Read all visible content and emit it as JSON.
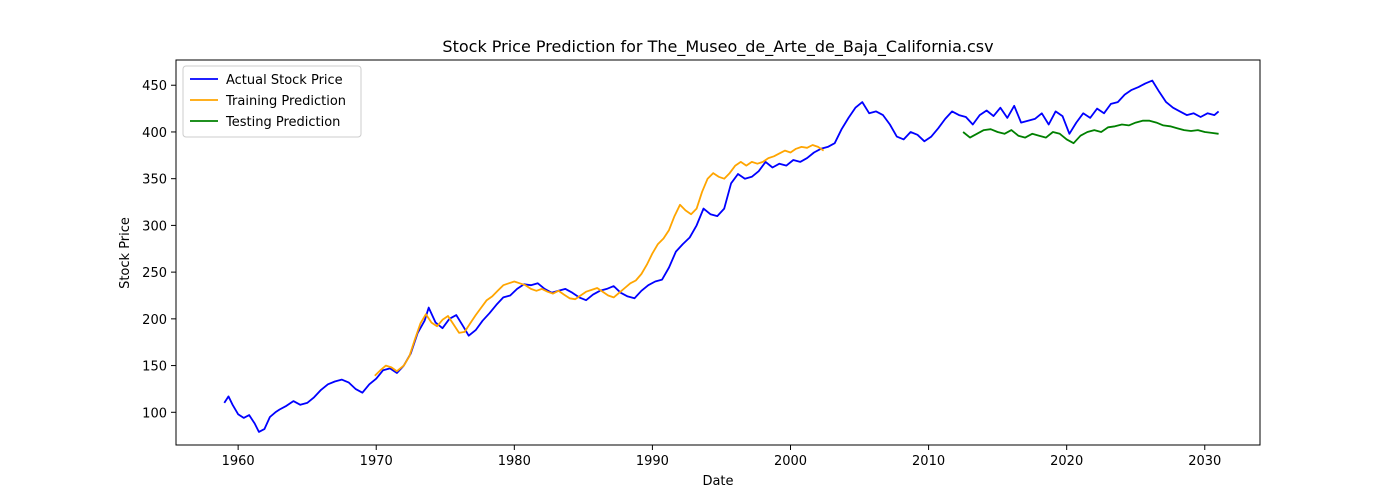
{
  "chart_data": {
    "type": "line",
    "title": "Stock Price Prediction for The_Museo_de_Arte_de_Baja_California.csv",
    "xlabel": "Date",
    "ylabel": "Stock Price",
    "xlim": [
      1955.5,
      2034.0
    ],
    "ylim": [
      65,
      477
    ],
    "xticks": [
      1960,
      1970,
      1980,
      1990,
      2000,
      2010,
      2020,
      2030
    ],
    "xtick_labels": [
      "1960",
      "1970",
      "1980",
      "1990",
      "2000",
      "2010",
      "2020",
      "2030"
    ],
    "yticks": [
      100,
      150,
      200,
      250,
      300,
      350,
      400,
      450
    ],
    "ytick_labels": [
      "100",
      "150",
      "200",
      "250",
      "300",
      "350",
      "400",
      "450"
    ],
    "grid": false,
    "legend_position": "upper-left",
    "series": [
      {
        "name": "Actual Stock Price",
        "color": "#0000ff",
        "x": [
          1959.0,
          1959.3,
          1959.6,
          1960.0,
          1960.4,
          1960.8,
          1961.2,
          1961.5,
          1961.9,
          1962.3,
          1962.7,
          1963.0,
          1963.5,
          1964.0,
          1964.5,
          1965.0,
          1965.5,
          1966.0,
          1966.5,
          1967.0,
          1967.5,
          1968.0,
          1968.5,
          1969.0,
          1969.5,
          1970.0,
          1970.5,
          1971.0,
          1971.5,
          1972.0,
          1972.5,
          1973.0,
          1973.5,
          1973.8,
          1974.3,
          1974.8,
          1975.3,
          1975.8,
          1976.3,
          1976.7,
          1977.2,
          1977.7,
          1978.2,
          1978.7,
          1979.2,
          1979.7,
          1980.2,
          1980.7,
          1981.2,
          1981.7,
          1982.2,
          1982.7,
          1983.2,
          1983.7,
          1984.2,
          1984.7,
          1985.2,
          1985.7,
          1986.2,
          1986.7,
          1987.2,
          1987.7,
          1988.2,
          1988.7,
          1989.2,
          1989.7,
          1990.2,
          1990.7,
          1991.2,
          1991.7,
          1992.2,
          1992.7,
          1993.2,
          1993.7,
          1994.2,
          1994.7,
          1995.2,
          1995.7,
          1996.2,
          1996.7,
          1997.2,
          1997.7,
          1998.2,
          1998.7,
          1999.2,
          1999.7,
          2000.2,
          2000.7,
          2001.2,
          2001.7,
          2002.2,
          2002.7,
          2003.2,
          2003.7,
          2004.2,
          2004.7,
          2005.2,
          2005.7,
          2006.2,
          2006.7,
          2007.2,
          2007.7,
          2008.2,
          2008.7,
          2009.2,
          2009.7,
          2010.2,
          2010.7,
          2011.2,
          2011.7,
          2012.2,
          2012.7,
          2013.2,
          2013.7,
          2014.2,
          2014.7,
          2015.2,
          2015.7,
          2016.2,
          2016.7,
          2017.2,
          2017.7,
          2018.2,
          2018.7,
          2019.2,
          2019.7,
          2020.2,
          2020.7,
          2021.2,
          2021.7,
          2022.2,
          2022.7,
          2023.2,
          2023.7,
          2024.2,
          2024.7,
          2025.2,
          2025.7,
          2026.2,
          2026.7,
          2027.2,
          2027.7,
          2028.2,
          2028.7,
          2029.2,
          2029.7,
          2030.2,
          2030.7,
          2031.0
        ],
        "y": [
          110,
          117,
          108,
          98,
          94,
          97,
          88,
          79,
          82,
          95,
          100,
          103,
          107,
          112,
          108,
          110,
          116,
          124,
          130,
          133,
          135,
          132,
          125,
          121,
          130,
          136,
          145,
          147,
          142,
          150,
          163,
          185,
          198,
          212,
          196,
          190,
          200,
          204,
          192,
          182,
          188,
          198,
          206,
          215,
          223,
          225,
          232,
          237,
          236,
          238,
          232,
          228,
          230,
          232,
          228,
          223,
          220,
          226,
          230,
          232,
          235,
          228,
          224,
          222,
          230,
          236,
          240,
          242,
          255,
          272,
          280,
          287,
          300,
          318,
          312,
          310,
          318,
          345,
          355,
          350,
          352,
          358,
          368,
          362,
          366,
          364,
          370,
          368,
          372,
          378,
          382,
          384,
          388,
          403,
          415,
          426,
          432,
          420,
          422,
          418,
          408,
          395,
          392,
          400,
          397,
          390,
          395,
          404,
          414,
          422,
          418,
          416,
          408,
          418,
          423,
          417,
          426,
          415,
          428,
          410,
          412,
          414,
          420,
          408,
          422,
          417,
          398,
          410,
          420,
          415,
          425,
          420,
          430,
          432,
          440,
          445,
          448,
          452,
          455,
          443,
          432,
          426,
          422,
          418,
          420,
          416,
          420,
          418,
          422
        ]
      },
      {
        "name": "Training Prediction",
        "color": "#ffa500",
        "x": [
          1969.9,
          1970.3,
          1970.7,
          1971.1,
          1971.5,
          1972.0,
          1972.4,
          1972.8,
          1973.2,
          1973.6,
          1974.0,
          1974.4,
          1974.8,
          1975.2,
          1975.6,
          1976.0,
          1976.4,
          1976.8,
          1977.2,
          1977.6,
          1978.0,
          1978.4,
          1978.8,
          1979.2,
          1979.6,
          1980.0,
          1980.4,
          1980.8,
          1981.2,
          1981.6,
          1982.0,
          1982.4,
          1982.8,
          1983.2,
          1983.6,
          1984.0,
          1984.4,
          1984.8,
          1985.2,
          1985.6,
          1986.0,
          1986.4,
          1986.8,
          1987.2,
          1987.6,
          1988.0,
          1988.4,
          1988.8,
          1989.2,
          1989.6,
          1990.0,
          1990.4,
          1990.8,
          1991.2,
          1991.6,
          1992.0,
          1992.4,
          1992.8,
          1993.2,
          1993.6,
          1994.0,
          1994.4,
          1994.8,
          1995.2,
          1995.6,
          1996.0,
          1996.4,
          1996.8,
          1997.2,
          1997.6,
          1998.0,
          1998.4,
          1998.8,
          1999.2,
          1999.6,
          2000.0,
          2000.4,
          2000.8,
          2001.2,
          2001.6,
          2002.0,
          2002.4
        ],
        "y": [
          139,
          145,
          150,
          148,
          144,
          150,
          160,
          178,
          195,
          205,
          196,
          192,
          199,
          203,
          194,
          185,
          186,
          195,
          204,
          212,
          220,
          224,
          230,
          236,
          238,
          240,
          238,
          236,
          232,
          230,
          232,
          229,
          227,
          230,
          226,
          222,
          221,
          225,
          229,
          231,
          233,
          229,
          225,
          223,
          228,
          233,
          238,
          241,
          248,
          258,
          270,
          280,
          286,
          295,
          310,
          322,
          316,
          312,
          318,
          336,
          350,
          356,
          352,
          350,
          356,
          364,
          368,
          364,
          368,
          366,
          368,
          372,
          374,
          377,
          380,
          378,
          382,
          384,
          383,
          386,
          384,
          380
        ]
      },
      {
        "name": "Testing Prediction",
        "color": "#008000",
        "x": [
          2012.5,
          2013.0,
          2013.5,
          2014.0,
          2014.5,
          2015.0,
          2015.5,
          2016.0,
          2016.5,
          2017.0,
          2017.5,
          2018.0,
          2018.5,
          2019.0,
          2019.5,
          2020.0,
          2020.5,
          2021.0,
          2021.5,
          2022.0,
          2022.5,
          2023.0,
          2023.5,
          2024.0,
          2024.5,
          2025.0,
          2025.5,
          2026.0,
          2026.5,
          2027.0,
          2027.5,
          2028.0,
          2028.5,
          2029.0,
          2029.5,
          2030.0,
          2030.5,
          2031.0
        ],
        "y": [
          400,
          394,
          398,
          402,
          403,
          400,
          398,
          402,
          396,
          394,
          398,
          396,
          394,
          400,
          398,
          392,
          388,
          396,
          400,
          402,
          400,
          405,
          406,
          408,
          407,
          410,
          412,
          412,
          410,
          407,
          406,
          404,
          402,
          401,
          402,
          400,
          399,
          398
        ]
      }
    ]
  }
}
